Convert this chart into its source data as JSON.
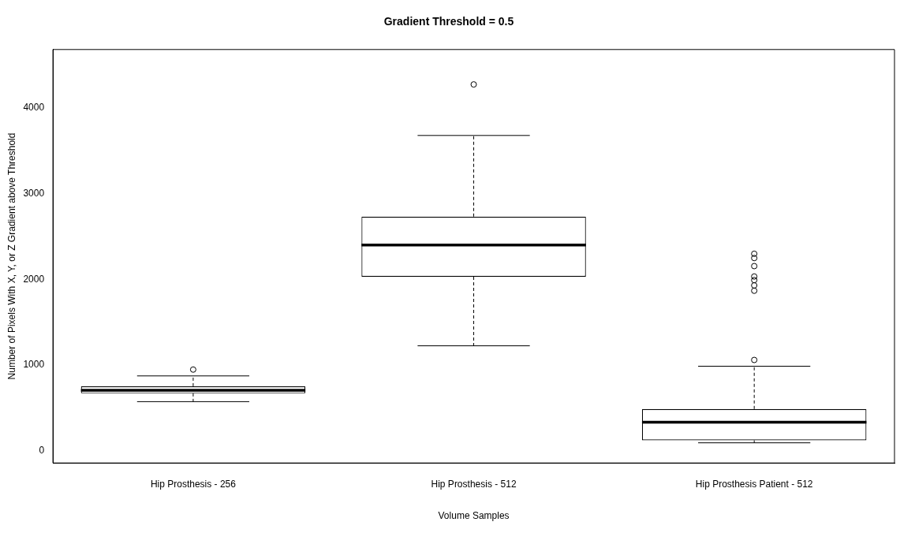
{
  "chart_data": {
    "type": "box",
    "title": "Gradient Threshold = 0.5",
    "xlabel": "Volume Samples",
    "ylabel": "Number of Pixels With X, Y, or Z Gradient above Threshold",
    "categories": [
      "Hip Prosthesis - 256",
      "Hip Prosthesis - 512",
      "Hip Prosthesis Patient - 512"
    ],
    "boxes": [
      {
        "low": 575,
        "q1": 672,
        "median": 707,
        "q3": 754,
        "high": 875,
        "outliers": [
          949
        ]
      },
      {
        "low": 1226,
        "q1": 2031,
        "median": 2402,
        "q3": 2732,
        "high": 3678,
        "outliers": [
          4273
        ]
      },
      {
        "low": 95,
        "q1": 124,
        "median": 336,
        "q3": 489,
        "high": 988,
        "outliers": [
          1061,
          1868,
          1930,
          1992,
          2034,
          2155,
          2249,
          2299
        ]
      }
    ],
    "ylim": [
      -140,
      4680
    ],
    "yticks": [
      0,
      1000,
      2000,
      3000,
      4000
    ],
    "grid": false,
    "legend": false,
    "marker": "circle"
  }
}
